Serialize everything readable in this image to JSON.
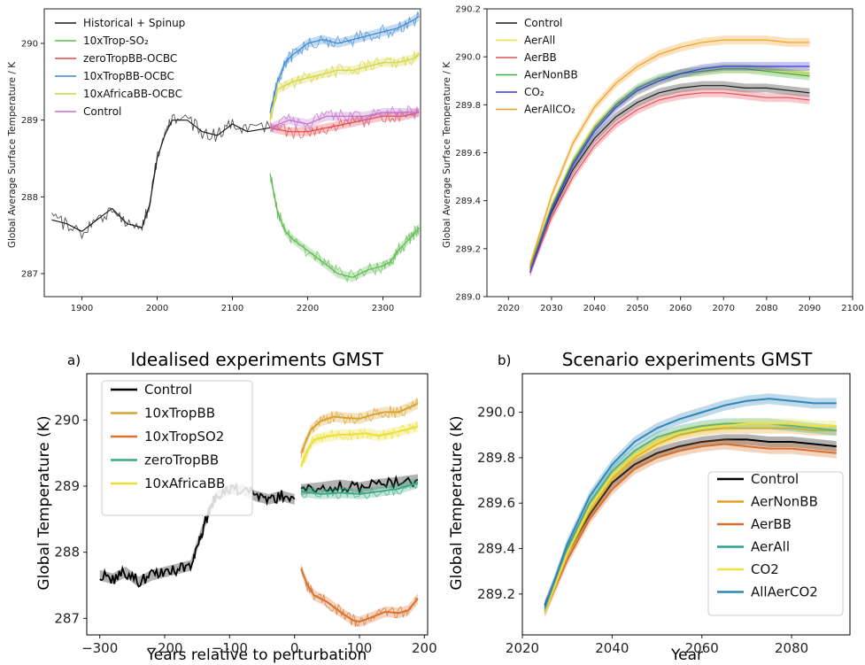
{
  "chart_data": [
    {
      "id": "tl",
      "type": "line",
      "ylabel": "Global Average Surface Temperature / K",
      "xlim": [
        1850,
        2350
      ],
      "ylim": [
        286.7,
        290.45
      ],
      "xticks": [
        "1900",
        "2000",
        "2100",
        "2200",
        "2300"
      ],
      "yticks": [
        "287",
        "288",
        "289",
        "290"
      ],
      "legend": {
        "position": "top-left",
        "entries": [
          {
            "label": "Historical + Spinup",
            "color": "#1a1a1a"
          },
          {
            "label": "10xTrop-SO₂",
            "color": "#5dbb4e"
          },
          {
            "label": "zeroTropBB-OCBC",
            "color": "#e4474c"
          },
          {
            "label": "10xTropBB-OCBC",
            "color": "#3d88d0"
          },
          {
            "label": "10xAfricaBB-OCBC",
            "color": "#d4d43c"
          },
          {
            "label": "Control",
            "color": "#c070c8"
          }
        ]
      },
      "series": [
        {
          "name": "Historical + Spinup",
          "color": "#1a1a1a",
          "x": [
            1860,
            1880,
            1900,
            1920,
            1940,
            1960,
            1980,
            1990,
            2000,
            2010,
            2020,
            2040,
            2060,
            2080,
            2100,
            2120,
            2150
          ],
          "y": [
            287.7,
            287.65,
            287.55,
            287.7,
            287.85,
            287.65,
            287.6,
            287.9,
            288.5,
            288.8,
            289.0,
            289.0,
            288.85,
            288.8,
            288.95,
            288.85,
            288.9
          ]
        },
        {
          "name": "10xTrop-SO₂",
          "color": "#5dbb4e",
          "x": [
            2150,
            2160,
            2170,
            2180,
            2200,
            2220,
            2240,
            2260,
            2280,
            2300,
            2310,
            2320,
            2330,
            2340,
            2348
          ],
          "y": [
            288.3,
            287.8,
            287.55,
            287.45,
            287.3,
            287.15,
            287.0,
            286.95,
            287.05,
            287.1,
            287.15,
            287.3,
            287.4,
            287.5,
            287.6
          ]
        },
        {
          "name": "zeroTropBB-OCBC",
          "color": "#e4474c",
          "x": [
            2150,
            2175,
            2200,
            2225,
            2250,
            2275,
            2300,
            2325,
            2348
          ],
          "y": [
            288.9,
            288.85,
            288.85,
            288.9,
            288.95,
            289.0,
            289.05,
            289.05,
            289.1
          ]
        },
        {
          "name": "10xTropBB-OCBC",
          "color": "#3d88d0",
          "x": [
            2150,
            2160,
            2170,
            2180,
            2200,
            2220,
            2240,
            2260,
            2280,
            2300,
            2320,
            2340,
            2348
          ],
          "y": [
            289.1,
            289.5,
            289.75,
            289.85,
            290.0,
            290.05,
            290.0,
            290.05,
            290.1,
            290.15,
            290.2,
            290.3,
            290.35
          ]
        },
        {
          "name": "10xAfricaBB-OCBC",
          "color": "#d4d43c",
          "x": [
            2150,
            2160,
            2180,
            2200,
            2220,
            2240,
            2260,
            2280,
            2300,
            2320,
            2340,
            2348
          ],
          "y": [
            289.0,
            289.4,
            289.5,
            289.55,
            289.6,
            289.65,
            289.65,
            289.7,
            289.75,
            289.75,
            289.8,
            289.85
          ]
        },
        {
          "name": "Control",
          "color": "#c070c8",
          "x": [
            2150,
            2175,
            2200,
            2225,
            2250,
            2275,
            2300,
            2325,
            2348
          ],
          "y": [
            288.9,
            289.0,
            288.95,
            289.05,
            289.05,
            289.05,
            289.1,
            289.1,
            289.1
          ]
        }
      ]
    },
    {
      "id": "tr",
      "type": "line",
      "ylabel": "Global Average Surface Temperature / K",
      "xlim": [
        2015,
        2100
      ],
      "ylim": [
        289.0,
        290.2
      ],
      "xticks": [
        "2020",
        "2030",
        "2040",
        "2050",
        "2060",
        "2070",
        "2080",
        "2090",
        "2100"
      ],
      "yticks": [
        "289.0",
        "289.2",
        "289.4",
        "289.6",
        "289.8",
        "290.0",
        "290.2"
      ],
      "legend": {
        "position": "top-left",
        "entries": [
          {
            "label": "Control",
            "color": "#1a1a1a"
          },
          {
            "label": "AerAll",
            "color": "#f0e040"
          },
          {
            "label": "AerBB",
            "color": "#e8505a"
          },
          {
            "label": "AerNonBB",
            "color": "#3fa83f"
          },
          {
            "label": "CO₂",
            "color": "#3a3ad8"
          },
          {
            "label": "AerAllCO₂",
            "color": "#f0a020"
          }
        ]
      },
      "series": [
        {
          "name": "Control",
          "color": "#1a1a1a",
          "x": [
            2025,
            2030,
            2035,
            2040,
            2045,
            2050,
            2055,
            2060,
            2065,
            2070,
            2075,
            2080,
            2085,
            2090
          ],
          "y": [
            289.12,
            289.35,
            289.53,
            289.66,
            289.75,
            289.81,
            289.85,
            289.87,
            289.88,
            289.88,
            289.87,
            289.87,
            289.86,
            289.85
          ]
        },
        {
          "name": "AerAll",
          "color": "#f0e040",
          "x": [
            2025,
            2030,
            2035,
            2040,
            2045,
            2050,
            2055,
            2060,
            2065,
            2070,
            2075,
            2080,
            2085,
            2090
          ],
          "y": [
            289.12,
            289.38,
            289.57,
            289.71,
            289.8,
            289.86,
            289.9,
            289.93,
            289.94,
            289.95,
            289.95,
            289.95,
            289.94,
            289.93
          ]
        },
        {
          "name": "AerBB",
          "color": "#e8505a",
          "x": [
            2025,
            2030,
            2035,
            2040,
            2045,
            2050,
            2055,
            2060,
            2065,
            2070,
            2075,
            2080,
            2085,
            2090
          ],
          "y": [
            289.1,
            289.33,
            289.5,
            289.63,
            289.72,
            289.78,
            289.82,
            289.84,
            289.85,
            289.85,
            289.84,
            289.83,
            289.83,
            289.82
          ]
        },
        {
          "name": "AerNonBB",
          "color": "#3fa83f",
          "x": [
            2025,
            2030,
            2035,
            2040,
            2045,
            2050,
            2055,
            2060,
            2065,
            2070,
            2075,
            2080,
            2085,
            2090
          ],
          "y": [
            289.12,
            289.37,
            289.56,
            289.7,
            289.8,
            289.87,
            289.91,
            289.93,
            289.94,
            289.95,
            289.95,
            289.94,
            289.93,
            289.92
          ]
        },
        {
          "name": "CO₂",
          "color": "#3a3ad8",
          "x": [
            2025,
            2030,
            2035,
            2040,
            2045,
            2050,
            2055,
            2060,
            2065,
            2070,
            2075,
            2080,
            2085,
            2090
          ],
          "y": [
            289.1,
            289.36,
            289.55,
            289.69,
            289.79,
            289.86,
            289.9,
            289.93,
            289.95,
            289.96,
            289.96,
            289.96,
            289.96,
            289.96
          ]
        },
        {
          "name": "AerAllCO₂",
          "color": "#f0a020",
          "x": [
            2025,
            2030,
            2035,
            2040,
            2045,
            2050,
            2055,
            2060,
            2065,
            2070,
            2075,
            2080,
            2085,
            2090
          ],
          "y": [
            289.13,
            289.42,
            289.64,
            289.79,
            289.89,
            289.96,
            290.01,
            290.04,
            290.06,
            290.07,
            290.07,
            290.07,
            290.06,
            290.06
          ]
        }
      ]
    },
    {
      "id": "bl",
      "type": "line",
      "panel_label": "a)",
      "title": "Idealised experiments GMST",
      "xlabel": "Years relative to perturbation",
      "ylabel": "Global Temperature (K)",
      "xlim": [
        -320,
        205
      ],
      "ylim": [
        286.75,
        290.7
      ],
      "xticks": [
        "−300",
        "−200",
        "−100",
        "0",
        "100",
        "200"
      ],
      "yticks": [
        "287",
        "288",
        "289",
        "290"
      ],
      "legend": {
        "position": "top-left",
        "entries": [
          {
            "label": "Control",
            "color": "#000000"
          },
          {
            "label": "10xTropBB",
            "color": "#d9a330"
          },
          {
            "label": "10xTropSO2",
            "color": "#d9722c"
          },
          {
            "label": "zeroTropBB",
            "color": "#3aa886"
          },
          {
            "label": "10xAfricaBB",
            "color": "#ece038"
          }
        ]
      },
      "series": [
        {
          "name": "Control",
          "color": "#000000",
          "x": [
            -300,
            -280,
            -260,
            -240,
            -220,
            -200,
            -180,
            -160,
            -150,
            -140,
            -130,
            -120,
            -100,
            -80,
            -60,
            -40,
            -20,
            0
          ],
          "y": [
            287.65,
            287.6,
            287.7,
            287.55,
            287.65,
            287.7,
            287.75,
            287.8,
            288.1,
            288.4,
            288.65,
            288.85,
            288.95,
            288.95,
            288.85,
            288.8,
            288.85,
            288.8
          ]
        },
        {
          "name": "Control",
          "color": "#000000",
          "x": [
            10,
            40,
            70,
            100,
            130,
            160,
            190
          ],
          "y": [
            288.95,
            288.98,
            289.02,
            288.98,
            289.03,
            289.06,
            289.1
          ]
        },
        {
          "name": "10xTropBB",
          "color": "#d9a330",
          "x": [
            10,
            25,
            40,
            60,
            80,
            100,
            120,
            140,
            160,
            175,
            190
          ],
          "y": [
            289.5,
            289.85,
            289.98,
            290.05,
            290.03,
            290.02,
            290.08,
            290.12,
            290.12,
            290.18,
            290.25
          ]
        },
        {
          "name": "10xTropSO2",
          "color": "#d9722c",
          "x": [
            10,
            20,
            30,
            50,
            70,
            90,
            100,
            120,
            140,
            160,
            175,
            190
          ],
          "y": [
            287.75,
            287.5,
            287.35,
            287.25,
            287.1,
            286.97,
            286.95,
            287.02,
            287.1,
            287.08,
            287.12,
            287.3
          ]
        },
        {
          "name": "zeroTropBB",
          "color": "#3aa886",
          "x": [
            10,
            40,
            70,
            100,
            130,
            160,
            190
          ],
          "y": [
            288.92,
            288.88,
            288.9,
            288.88,
            288.92,
            288.96,
            289.05
          ]
        },
        {
          "name": "10xAfricaBB",
          "color": "#ece038",
          "x": [
            10,
            20,
            30,
            50,
            70,
            90,
            110,
            130,
            150,
            170,
            190
          ],
          "y": [
            289.3,
            289.55,
            289.7,
            289.75,
            289.78,
            289.78,
            289.8,
            289.76,
            289.8,
            289.85,
            289.9
          ]
        }
      ]
    },
    {
      "id": "br",
      "type": "line",
      "panel_label": "b)",
      "title": "Scenario experiments GMST",
      "xlabel": "Year",
      "ylabel": "Global Temperature (K)",
      "xlim": [
        2020,
        2093
      ],
      "ylim": [
        289.02,
        290.17
      ],
      "xticks": [
        "2020",
        "2040",
        "2060",
        "2080"
      ],
      "yticks": [
        "289.2",
        "289.4",
        "289.6",
        "289.8",
        "290.0"
      ],
      "legend": {
        "position": "lower-right",
        "entries": [
          {
            "label": "Control",
            "color": "#000000"
          },
          {
            "label": "AerNonBB",
            "color": "#e0a020"
          },
          {
            "label": "AerBB",
            "color": "#d8702c"
          },
          {
            "label": "AerAll",
            "color": "#28a08a"
          },
          {
            "label": "CO2",
            "color": "#f0e040"
          },
          {
            "label": "AllAerCO2",
            "color": "#2f86b8"
          }
        ]
      },
      "series": [
        {
          "name": "Control",
          "color": "#000000",
          "x": [
            2025,
            2030,
            2035,
            2040,
            2045,
            2050,
            2055,
            2060,
            2065,
            2070,
            2075,
            2080,
            2085,
            2090
          ],
          "y": [
            289.15,
            289.38,
            289.55,
            289.69,
            289.77,
            289.82,
            289.85,
            289.87,
            289.88,
            289.88,
            289.87,
            289.87,
            289.86,
            289.85
          ]
        },
        {
          "name": "AerNonBB",
          "color": "#e0a020",
          "x": [
            2025,
            2030,
            2035,
            2040,
            2045,
            2050,
            2055,
            2060,
            2065,
            2070,
            2075,
            2080,
            2085,
            2090
          ],
          "y": [
            289.13,
            289.38,
            289.57,
            289.71,
            289.8,
            289.86,
            289.9,
            289.92,
            289.93,
            289.93,
            289.93,
            289.93,
            289.92,
            289.92
          ]
        },
        {
          "name": "AerBB",
          "color": "#d8702c",
          "x": [
            2025,
            2030,
            2035,
            2040,
            2045,
            2050,
            2055,
            2060,
            2065,
            2070,
            2075,
            2080,
            2085,
            2090
          ],
          "y": [
            289.12,
            289.35,
            289.53,
            289.66,
            289.75,
            289.8,
            289.83,
            289.85,
            289.86,
            289.85,
            289.84,
            289.84,
            289.83,
            289.82
          ]
        },
        {
          "name": "AerAll",
          "color": "#28a08a",
          "x": [
            2025,
            2030,
            2035,
            2040,
            2045,
            2050,
            2055,
            2060,
            2065,
            2070,
            2075,
            2080,
            2085,
            2090
          ],
          "y": [
            289.13,
            289.4,
            289.6,
            289.74,
            289.83,
            289.89,
            289.92,
            289.94,
            289.95,
            289.95,
            289.95,
            289.94,
            289.93,
            289.92
          ]
        },
        {
          "name": "CO2",
          "color": "#f0e040",
          "x": [
            2025,
            2030,
            2035,
            2040,
            2045,
            2050,
            2055,
            2060,
            2065,
            2070,
            2075,
            2080,
            2085,
            2090
          ],
          "y": [
            289.12,
            289.38,
            289.58,
            289.72,
            289.81,
            289.87,
            289.91,
            289.93,
            289.94,
            289.95,
            289.95,
            289.95,
            289.94,
            289.94
          ]
        },
        {
          "name": "AllAerCO2",
          "color": "#2f86b8",
          "x": [
            2025,
            2030,
            2035,
            2040,
            2045,
            2050,
            2055,
            2060,
            2065,
            2070,
            2075,
            2080,
            2085,
            2090
          ],
          "y": [
            289.14,
            289.42,
            289.63,
            289.77,
            289.87,
            289.93,
            289.97,
            290.0,
            290.03,
            290.05,
            290.06,
            290.05,
            290.04,
            290.04
          ]
        }
      ]
    }
  ]
}
